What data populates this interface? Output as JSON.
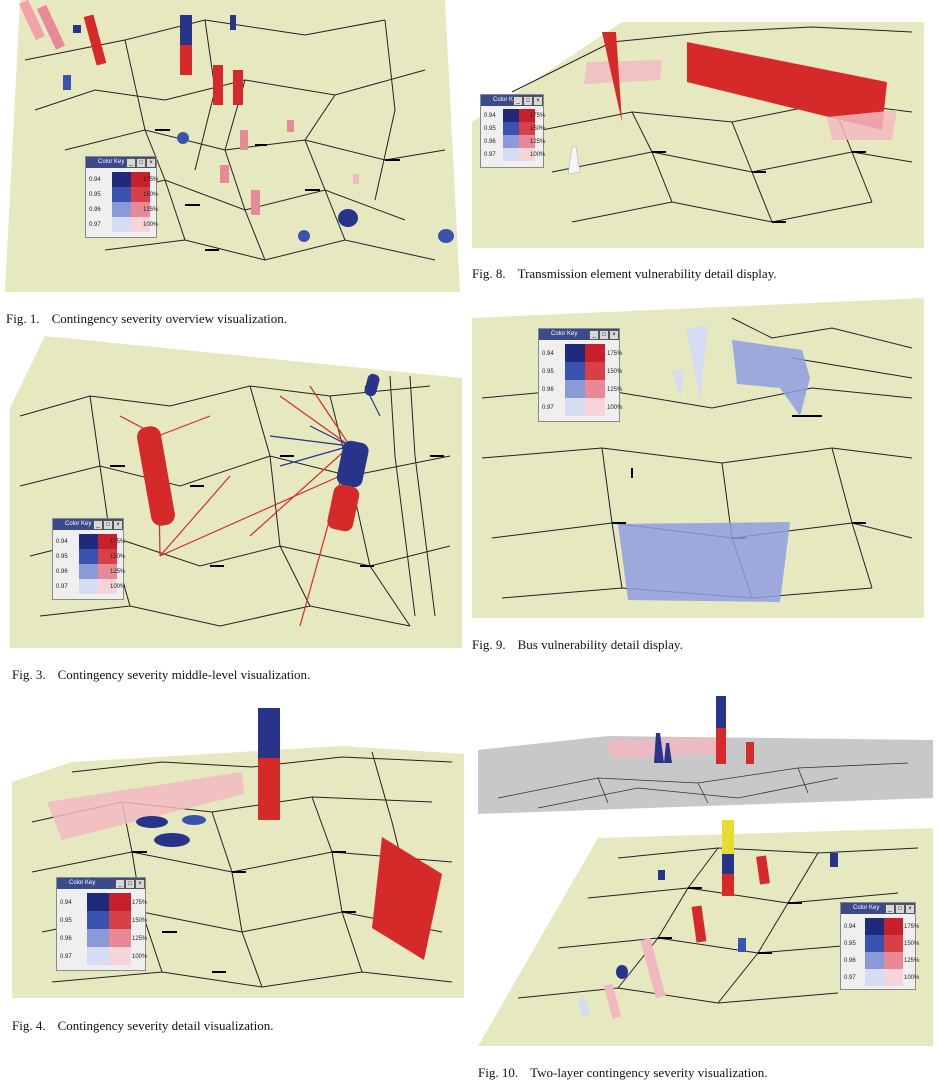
{
  "color_key": {
    "title": "Color Key",
    "rows": [
      "0.94",
      "0.95",
      "0.96",
      "0.97"
    ],
    "percents": [
      "175%",
      "150%",
      "125%",
      "100%"
    ],
    "blue_shades": [
      "#1f2a7a",
      "#3a52b0",
      "#8a9ad8",
      "#d6dcf2"
    ],
    "red_shades": [
      "#c8202a",
      "#d84048",
      "#e88a96",
      "#f6d4da"
    ]
  },
  "colors": {
    "plane": "#e6e8c0",
    "gray_plane": "#c8c8c8",
    "red": "#d62a2a",
    "pink": "#f2b8c0",
    "blue": "#28338a",
    "light_blue": "#8f9ee0"
  },
  "figures": [
    {
      "id": "fig1",
      "label": "Fig. 1.",
      "caption": "Contingency severity overview visualization."
    },
    {
      "id": "fig3",
      "label": "Fig. 3.",
      "caption": "Contingency severity middle-level visualization."
    },
    {
      "id": "fig4",
      "label": "Fig. 4.",
      "caption": "Contingency severity detail visualization."
    },
    {
      "id": "fig8",
      "label": "Fig. 8.",
      "caption": "Transmission element vulnerability detail display."
    },
    {
      "id": "fig9",
      "label": "Fig. 9.",
      "caption": "Bus vulnerability detail display."
    },
    {
      "id": "fig10",
      "label": "Fig. 10.",
      "caption": "Two-layer contingency severity visualization."
    }
  ]
}
